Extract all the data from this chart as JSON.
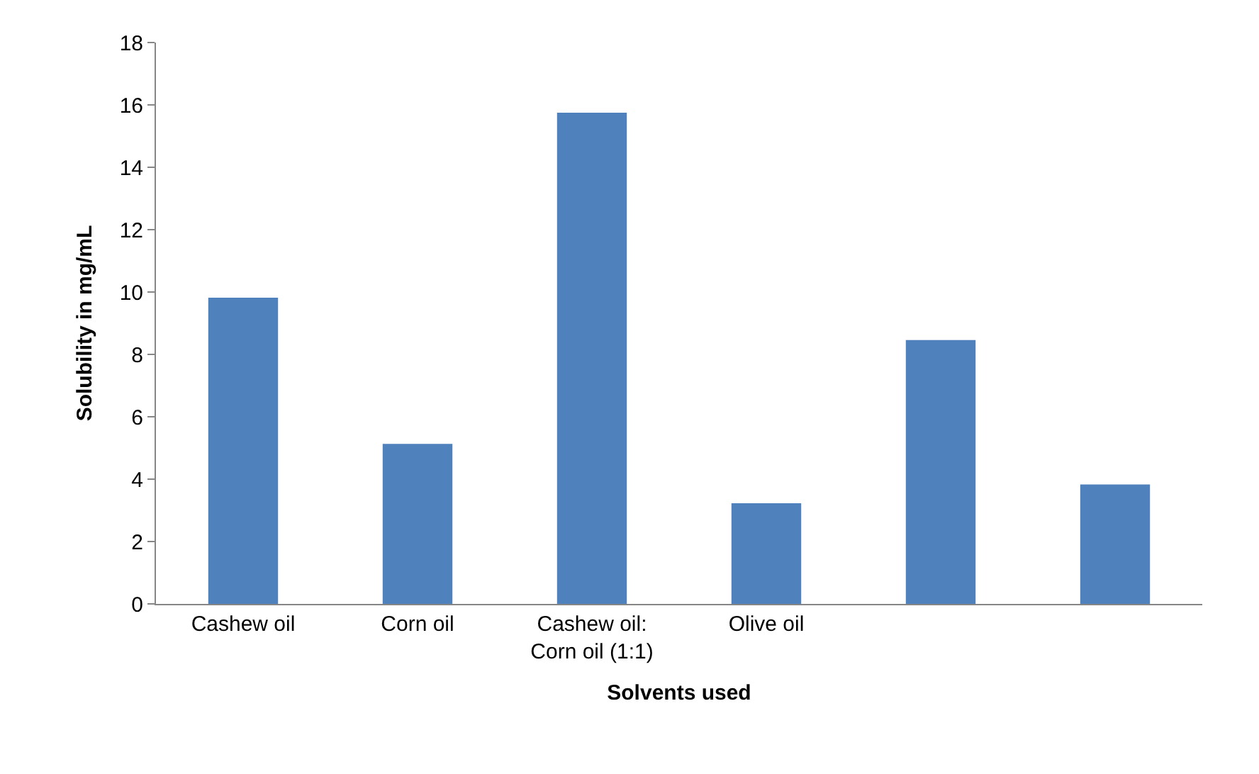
{
  "chart_data": {
    "type": "bar",
    "xlabel": "Solvents used",
    "ylabel": "Solubility in mg/mL",
    "categories": [
      "Cashew oil",
      "Corn oil",
      "Cashew oil:\nCorn oil (1:1)",
      "Olive oil",
      null,
      null
    ],
    "values": [
      9.82,
      5.13,
      15.75,
      3.23,
      8.46,
      3.83
    ],
    "color": "#4f81bd",
    "ylim": [
      0,
      18
    ],
    "yticks": [
      0,
      2,
      4,
      6,
      8,
      10,
      12,
      14,
      16,
      18
    ]
  }
}
